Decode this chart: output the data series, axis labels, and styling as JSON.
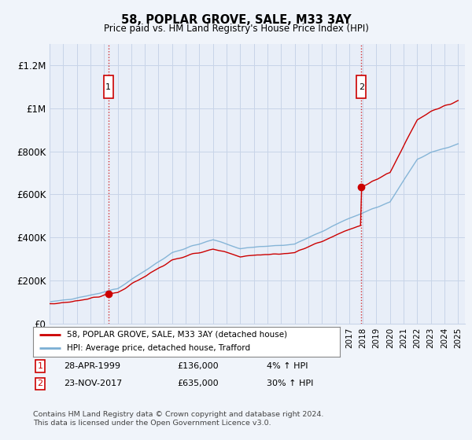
{
  "title": "58, POPLAR GROVE, SALE, M33 3AY",
  "subtitle": "Price paid vs. HM Land Registry's House Price Index (HPI)",
  "ylabel_ticks": [
    "£0",
    "£200K",
    "£400K",
    "£600K",
    "£800K",
    "£1M",
    "£1.2M"
  ],
  "ytick_values": [
    0,
    200000,
    400000,
    600000,
    800000,
    1000000,
    1200000
  ],
  "ylim": [
    0,
    1300000
  ],
  "xlim_start": 1995.0,
  "xlim_end": 2025.5,
  "hpi_color": "#7bafd4",
  "price_color": "#cc0000",
  "marker1_date": 1999.32,
  "marker1_price": 136000,
  "marker2_date": 2017.9,
  "marker2_price": 635000,
  "legend_line1": "58, POPLAR GROVE, SALE, M33 3AY (detached house)",
  "legend_line2": "HPI: Average price, detached house, Trafford",
  "footer": "Contains HM Land Registry data © Crown copyright and database right 2024.\nThis data is licensed under the Open Government Licence v3.0.",
  "background_color": "#f0f4fa",
  "plot_background": "#e8eef8",
  "grid_color": "#c8d4e8",
  "vline_color": "#cc0000",
  "font_family": "DejaVu Sans"
}
